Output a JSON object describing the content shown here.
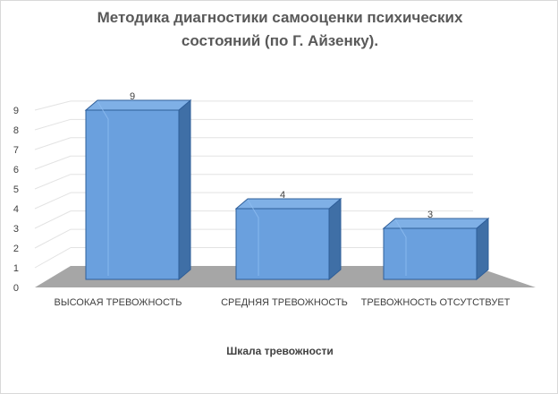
{
  "chart_data": {
    "type": "bar",
    "title": "Методика диагностики самооценки психических состояний (по Г. Айзенку).",
    "xlabel": "Шкала тревожности",
    "ylabel": "",
    "categories": [
      "ВЫСОКАЯ ТРЕВОЖНОСТЬ",
      "СРЕДНЯЯ ТРЕВОЖНОСТЬ",
      "ТРЕВОЖНОСТЬ ОТСУТСТВУЕТ"
    ],
    "values": [
      9,
      4,
      3
    ],
    "ylim": [
      0,
      9
    ],
    "yticks": [
      0,
      1,
      2,
      3,
      4,
      5,
      6,
      7,
      8,
      9
    ],
    "data_labels": true,
    "grid": true,
    "style": "3d-column",
    "colors": {
      "bar_front": "#6aa0de",
      "bar_side": "#3f6fa6",
      "bar_top": "#7fb0e6",
      "bar_edge": "#2f5f9a",
      "floor": "#a6a6a6",
      "grid": "#e3e3e3",
      "axis_text": "#404040",
      "title": "#595959"
    }
  }
}
